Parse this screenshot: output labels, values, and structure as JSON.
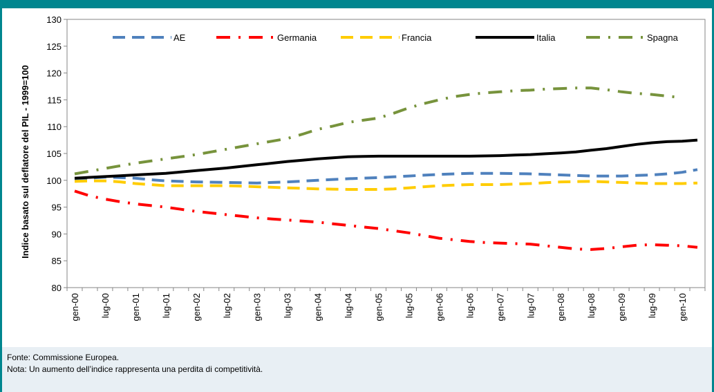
{
  "chart_data": {
    "type": "line",
    "y_label": "Indice basato sul deflatore del PIL - 1999=100",
    "categories": [
      "gen-00",
      null,
      "lug-00",
      null,
      "gen-01",
      null,
      "lug-01",
      null,
      "gen-02",
      null,
      "lug-02",
      null,
      "gen-03",
      null,
      "lug-03",
      null,
      "gen-04",
      null,
      "lug-04",
      null,
      "gen-05",
      null,
      "lug-05",
      null,
      "gen-06",
      null,
      "lug-06",
      null,
      "gen-07",
      null,
      "lug-07",
      null,
      "gen-08",
      null,
      "lug-08",
      null,
      "gen-09",
      null,
      "lug-09",
      null,
      "gen-10",
      null
    ],
    "series": [
      {
        "name": "AE",
        "color": "#4f81bd",
        "style": "dash",
        "values": [
          100.1,
          100.4,
          100.6,
          100.5,
          100.4,
          100.1,
          99.9,
          99.8,
          99.7,
          99.65,
          99.6,
          99.55,
          99.5,
          99.6,
          99.7,
          99.85,
          100.0,
          100.15,
          100.3,
          100.4,
          100.5,
          100.65,
          100.8,
          100.95,
          101.1,
          101.2,
          101.3,
          101.3,
          101.3,
          101.25,
          101.2,
          101.1,
          101.0,
          100.9,
          100.8,
          100.8,
          100.8,
          100.9,
          101.0,
          101.2,
          101.5,
          102.0
        ]
      },
      {
        "name": "Germania",
        "color": "#ff0000",
        "style": "dash-dot",
        "values": [
          98.0,
          97.1,
          96.5,
          96.0,
          95.6,
          95.3,
          95.0,
          94.6,
          94.2,
          93.9,
          93.6,
          93.3,
          93.0,
          92.8,
          92.6,
          92.4,
          92.2,
          91.9,
          91.6,
          91.3,
          91.0,
          90.6,
          90.2,
          89.7,
          89.2,
          88.9,
          88.6,
          88.4,
          88.3,
          88.2,
          88.1,
          87.8,
          87.5,
          87.2,
          87.1,
          87.3,
          87.6,
          87.9,
          88.0,
          87.9,
          87.8,
          87.5
        ]
      },
      {
        "name": "Francia",
        "color": "#ffcc00",
        "style": "dash",
        "values": [
          99.8,
          99.9,
          99.9,
          99.7,
          99.4,
          99.2,
          99.0,
          99.0,
          99.0,
          99.0,
          99.0,
          98.9,
          98.8,
          98.7,
          98.6,
          98.5,
          98.4,
          98.35,
          98.3,
          98.3,
          98.3,
          98.4,
          98.6,
          98.8,
          99.0,
          99.1,
          99.2,
          99.2,
          99.2,
          99.3,
          99.4,
          99.55,
          99.7,
          99.75,
          99.8,
          99.7,
          99.6,
          99.5,
          99.4,
          99.4,
          99.4,
          99.5
        ]
      },
      {
        "name": "Italia",
        "color": "#000000",
        "style": "solid",
        "values": [
          100.4,
          100.55,
          100.7,
          100.85,
          101.0,
          101.15,
          101.3,
          101.55,
          101.8,
          102.05,
          102.3,
          102.6,
          102.9,
          103.2,
          103.5,
          103.75,
          104.0,
          104.2,
          104.4,
          104.45,
          104.5,
          104.5,
          104.5,
          104.5,
          104.5,
          104.5,
          104.5,
          104.55,
          104.6,
          104.7,
          104.8,
          104.95,
          105.1,
          105.3,
          105.6,
          105.9,
          106.3,
          106.7,
          107.0,
          107.2,
          107.3,
          107.5
        ]
      },
      {
        "name": "Spagna",
        "color": "#77933c",
        "style": "dash-dot",
        "values": [
          101.2,
          101.7,
          102.2,
          102.7,
          103.2,
          103.6,
          104.0,
          104.4,
          104.8,
          105.3,
          105.8,
          106.3,
          106.8,
          107.3,
          107.8,
          108.6,
          109.5,
          110.1,
          110.8,
          111.2,
          111.6,
          112.5,
          113.5,
          114.3,
          115.0,
          115.6,
          116.0,
          116.3,
          116.5,
          116.7,
          116.8,
          117.0,
          117.1,
          117.2,
          117.2,
          116.9,
          116.5,
          116.2,
          116.0,
          115.7,
          115.4,
          null
        ]
      }
    ],
    "ylim": [
      80,
      130
    ],
    "yticks": [
      80,
      85,
      90,
      95,
      100,
      105,
      110,
      115,
      120,
      125,
      130
    ],
    "legend": "top"
  },
  "notes": [
    "Fonte: Commissione Europea.",
    "Nota: Un aumento dell’indice rappresenta una perdita di competitività."
  ]
}
